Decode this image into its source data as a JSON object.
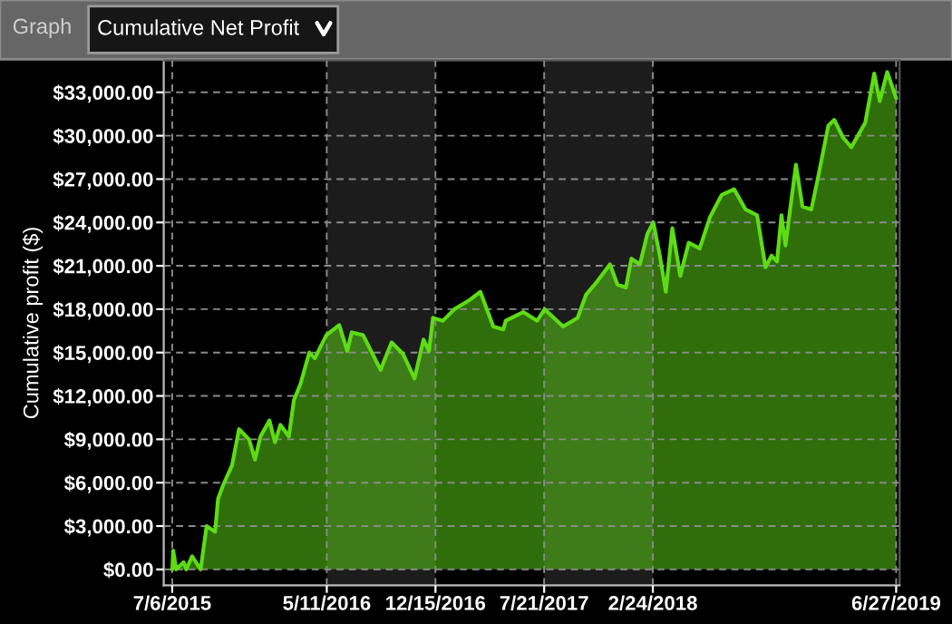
{
  "chart_data": {
    "type": "area",
    "ylabel": "Cumulative profit ($)",
    "annotations": [
      "Graph",
      "Cumulative Net Profit"
    ],
    "x": [
      "2015-07-06",
      "2015-07-08",
      "2015-07-14",
      "2015-07-29",
      "2015-08-03",
      "2015-08-15",
      "2015-09-01",
      "2015-09-13",
      "2015-09-30",
      "2015-10-06",
      "2015-10-17",
      "2015-11-03",
      "2015-11-17",
      "2015-12-07",
      "2015-12-19",
      "2015-12-30",
      "2016-01-17",
      "2016-01-28",
      "2016-02-08",
      "2016-02-25",
      "2016-03-06",
      "2016-03-19",
      "2016-04-06",
      "2016-04-17",
      "2016-05-10",
      "2016-06-05",
      "2016-06-21",
      "2016-06-30",
      "2016-07-23",
      "2016-08-27",
      "2016-09-18",
      "2016-10-11",
      "2016-11-03",
      "2016-11-21",
      "2016-12-02",
      "2016-12-10",
      "2016-12-30",
      "2017-01-22",
      "2017-02-20",
      "2017-03-15",
      "2017-04-10",
      "2017-04-30",
      "2017-05-05",
      "2017-06-09",
      "2017-07-07",
      "2017-07-22",
      "2017-08-28",
      "2017-09-26",
      "2017-10-13",
      "2017-11-04",
      "2017-11-30",
      "2017-12-15",
      "2018-01-01",
      "2018-01-12",
      "2018-01-29",
      "2018-02-13",
      "2018-02-25",
      "2018-03-10",
      "2018-03-22",
      "2018-04-04",
      "2018-04-20",
      "2018-05-07",
      "2018-05-29",
      "2018-06-19",
      "2018-07-12",
      "2018-08-06",
      "2018-08-29",
      "2018-09-21",
      "2018-10-08",
      "2018-10-20",
      "2018-10-31",
      "2018-11-09",
      "2018-11-17",
      "2018-12-08",
      "2018-12-21",
      "2019-01-08",
      "2019-01-23",
      "2019-02-11",
      "2019-02-23",
      "2019-03-12",
      "2019-03-29",
      "2019-04-26",
      "2019-05-14",
      "2019-05-25",
      "2019-06-09",
      "2019-06-27"
    ],
    "series": [
      {
        "color": "#5ddc14",
        "values": [
          0,
          1300,
          0,
          500,
          0,
          900,
          0,
          3000,
          2600,
          4900,
          5900,
          7200,
          9700,
          9000,
          7600,
          9200,
          10300,
          8800,
          10000,
          9200,
          11700,
          12800,
          15000,
          14600,
          16200,
          16900,
          15100,
          16400,
          16200,
          13800,
          15700,
          14900,
          13200,
          15900,
          15100,
          17400,
          17200,
          18000,
          18600,
          19200,
          16800,
          16600,
          17200,
          17800,
          17200,
          18000,
          16800,
          17400,
          19000,
          19900,
          21100,
          19700,
          19500,
          21500,
          21100,
          23200,
          24000,
          21700,
          19200,
          23600,
          20300,
          22600,
          22200,
          24400,
          25900,
          26300,
          24900,
          24500,
          20900,
          21700,
          21300,
          24500,
          22400,
          28000,
          25100,
          24900,
          27400,
          30700,
          31100,
          29900,
          29200,
          30900,
          34300,
          32400,
          34400,
          32600
        ]
      }
    ],
    "xlim": [
      "2015-06-19",
      "2019-07-04"
    ],
    "xticks": [
      {
        "value": "2015-07-06",
        "label": "7/6/2015"
      },
      {
        "value": "2016-05-11",
        "label": "5/11/2016"
      },
      {
        "value": "2016-12-15",
        "label": "12/15/2016"
      },
      {
        "value": "2017-07-21",
        "label": "7/21/2017"
      },
      {
        "value": "2018-02-24",
        "label": "2/24/2018"
      },
      {
        "value": "2019-06-27",
        "label": "6/27/2019"
      }
    ],
    "ylim": [
      -1100,
      35200
    ],
    "yticks": [
      {
        "value": 0,
        "label": "$0.00"
      },
      {
        "value": 3000,
        "label": "$3,000.00"
      },
      {
        "value": 6000,
        "label": "$6,000.00"
      },
      {
        "value": 9000,
        "label": "$9,000.00"
      },
      {
        "value": 12000,
        "label": "$12,000.00"
      },
      {
        "value": 15000,
        "label": "$15,000.00"
      },
      {
        "value": 18000,
        "label": "$18,000.00"
      },
      {
        "value": 21000,
        "label": "$21,000.00"
      },
      {
        "value": 24000,
        "label": "$24,000.00"
      },
      {
        "value": 27000,
        "label": "$27,000.00"
      },
      {
        "value": 30000,
        "label": "$30,000.00"
      },
      {
        "value": 33000,
        "label": "$33,000.00"
      }
    ],
    "bands": [
      {
        "axis": "x",
        "from": "2016-05-11",
        "to": "2016-12-15",
        "color": "#1c1c1c"
      },
      {
        "axis": "x",
        "from": "2017-07-21",
        "to": "2018-02-24",
        "color": "#1c1c1c"
      }
    ],
    "grid": true,
    "line_style": "solid"
  }
}
